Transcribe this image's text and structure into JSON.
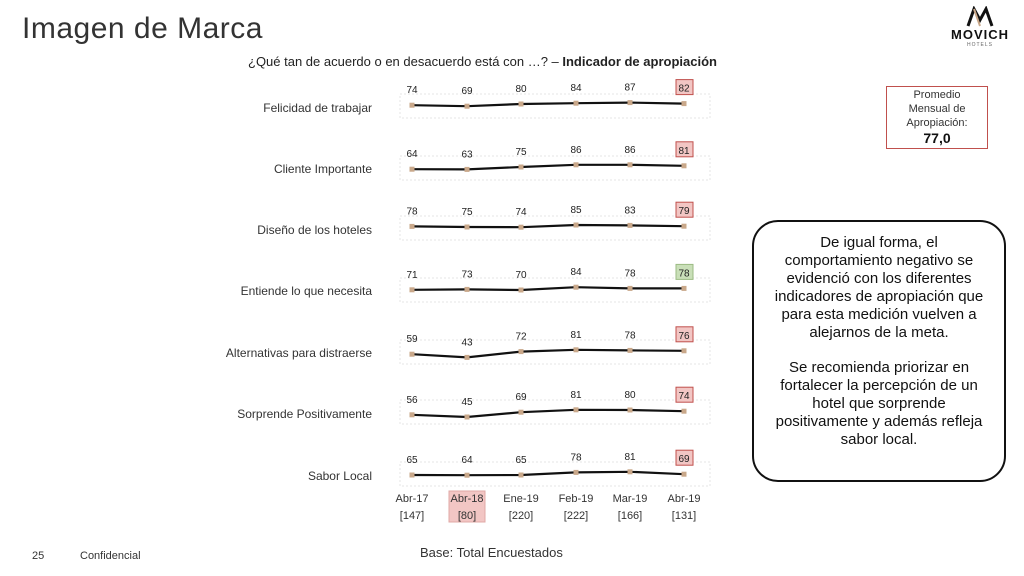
{
  "page": {
    "title": "Imagen de Marca",
    "subtitle_prefix": "¿Qué tan de acuerdo o en desacuerdo está con …? – ",
    "subtitle_bold": "Indicador de apropiación",
    "base": "Base: Total Encuestados",
    "page_number": "25",
    "confidential": "Confidencial"
  },
  "logo": {
    "name": "MOVICH",
    "sub": "HOTELS"
  },
  "average_box": {
    "label_lines": [
      "Promedio",
      "Mensual de",
      "Apropiación:"
    ],
    "value": "77,0"
  },
  "note": {
    "paragraph1": "De igual forma, el comportamiento negativo se evidenció con los diferentes indicadores de apropiación que para esta medición vuelven a alejarnos de la meta.",
    "paragraph2": "Se recomienda priorizar en fortalecer la percepción de un hotel que sorprende positivamente y además refleja sabor local."
  },
  "colors": {
    "line": "#111111",
    "marker": "#c9a88a",
    "highlight_red_fill": "#f2c6c4",
    "highlight_red_border": "#c0504d",
    "highlight_green_fill": "#c9dfb8",
    "highlight_green_border": "#9bbb83",
    "axis_highlight_fill": "#f2c6c4"
  },
  "chart_data": {
    "type": "line",
    "periods": [
      "Abr-17",
      "Abr-18",
      "Ene-19",
      "Feb-19",
      "Mar-19",
      "Abr-19"
    ],
    "bases": [
      "[147]",
      "[80]",
      "[220]",
      "[222]",
      "[166]",
      "[131]"
    ],
    "highlighted_period_index": 1,
    "series": [
      {
        "name": "Felicidad de trabajar",
        "values": [
          74,
          69,
          80,
          84,
          87,
          82
        ],
        "last_highlight": "red"
      },
      {
        "name": "Cliente Importante",
        "values": [
          64,
          63,
          75,
          86,
          86,
          81
        ],
        "last_highlight": "red"
      },
      {
        "name": "Diseño de los hoteles",
        "values": [
          78,
          75,
          74,
          85,
          83,
          79
        ],
        "last_highlight": "red"
      },
      {
        "name": "Entiende lo que necesita",
        "values": [
          71,
          73,
          70,
          84,
          78,
          78
        ],
        "last_highlight": "green"
      },
      {
        "name": "Alternativas para distraerse",
        "values": [
          59,
          43,
          72,
          81,
          78,
          76
        ],
        "last_highlight": "red"
      },
      {
        "name": "Sorprende Positivamente",
        "values": [
          56,
          45,
          69,
          81,
          80,
          74
        ],
        "last_highlight": "red"
      },
      {
        "name": "Sabor Local",
        "values": [
          65,
          64,
          65,
          78,
          81,
          69
        ],
        "last_highlight": "red"
      }
    ]
  }
}
